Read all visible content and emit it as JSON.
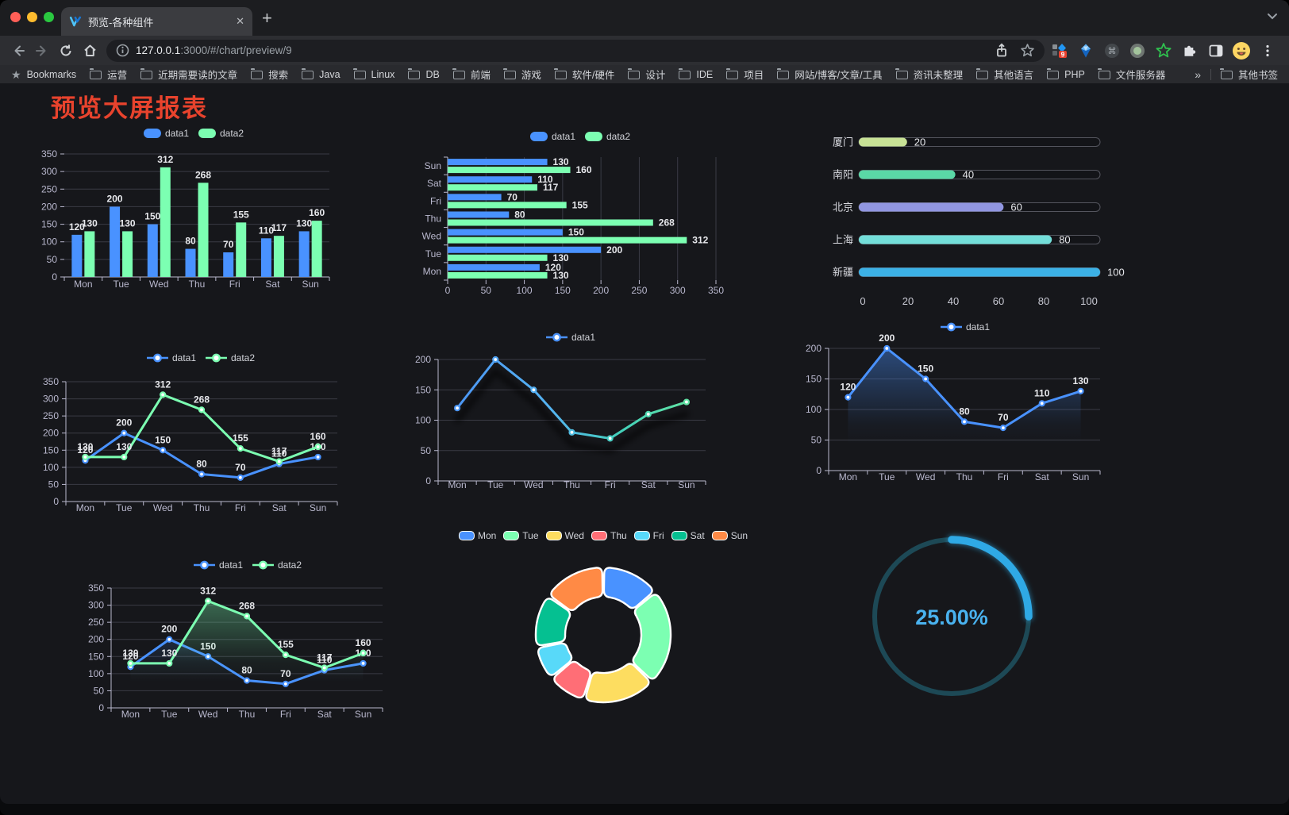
{
  "browser": {
    "window_controls": {
      "close": "#ff5f57",
      "minimize": "#febc2e",
      "zoom": "#2ac840"
    },
    "tab": {
      "title": "预览-各种组件",
      "close_glyph": "✕"
    },
    "new_tab_button": "+",
    "address": {
      "host": "127.0.0.1",
      "path": ":3000/#/chart/preview/9"
    },
    "extension_badge": "9",
    "bookmarks_label": "Bookmarks",
    "bookmarks": [
      "运营",
      "近期需要读的文章",
      "搜索",
      "Java",
      "Linux",
      "DB",
      "前端",
      "游戏",
      "软件/硬件",
      "设计",
      "IDE",
      "项目",
      "网站/博客/文章/工具",
      "资讯未整理",
      "其他语言",
      "PHP",
      "文件服务器"
    ],
    "bookmarks_overflow": "»",
    "other_bookmarks": "其他书签"
  },
  "page": {
    "title": "预览大屏报表",
    "title_color": "#e8432d",
    "background": "#16171b"
  },
  "chart_data": [
    {
      "id": "grouped-bar",
      "type": "bar",
      "categories": [
        "Mon",
        "Tue",
        "Wed",
        "Thu",
        "Fri",
        "Sat",
        "Sun"
      ],
      "series": [
        {
          "name": "data1",
          "color": "#4992ff",
          "values": [
            120,
            200,
            150,
            80,
            70,
            110,
            130
          ]
        },
        {
          "name": "data2",
          "color": "#7cffb2",
          "values": [
            130,
            130,
            312,
            268,
            155,
            117,
            160
          ]
        }
      ],
      "ylim": [
        0,
        350
      ],
      "ytick": 50,
      "legend_position": "top",
      "value_labels": true
    },
    {
      "id": "horizontal-bar",
      "type": "bar-horizontal",
      "categories": [
        "Mon",
        "Tue",
        "Wed",
        "Thu",
        "Fri",
        "Sat",
        "Sun"
      ],
      "series": [
        {
          "name": "data1",
          "color": "#4992ff",
          "values": [
            120,
            200,
            150,
            80,
            70,
            110,
            130
          ]
        },
        {
          "name": "data2",
          "color": "#7cffb2",
          "values": [
            130,
            130,
            312,
            268,
            155,
            117,
            160
          ]
        }
      ],
      "xlim": [
        0,
        350
      ],
      "xtick": 50,
      "legend_position": "top",
      "value_labels": true,
      "category_order": "Mon at bottom, Sun at top"
    },
    {
      "id": "progress-bars",
      "type": "bar",
      "items": [
        {
          "label": "厦门",
          "value": 20,
          "color": "#c8e296"
        },
        {
          "label": "南阳",
          "value": 40,
          "color": "#5ad8a6"
        },
        {
          "label": "北京",
          "value": 60,
          "color": "#9196e1"
        },
        {
          "label": "上海",
          "value": 80,
          "color": "#73ded9"
        },
        {
          "label": "新疆",
          "value": 100,
          "color": "#3cb1e6"
        }
      ],
      "xlim": [
        0,
        100
      ],
      "xticks": [
        0,
        20,
        40,
        60,
        80,
        100
      ]
    },
    {
      "id": "line-two-series",
      "type": "line",
      "categories": [
        "Mon",
        "Tue",
        "Wed",
        "Thu",
        "Fri",
        "Sat",
        "Sun"
      ],
      "series": [
        {
          "name": "data1",
          "color": "#4992ff",
          "values": [
            120,
            200,
            150,
            80,
            70,
            110,
            130
          ]
        },
        {
          "name": "data2",
          "color": "#7cffb2",
          "values": [
            130,
            130,
            312,
            268,
            155,
            117,
            160
          ]
        }
      ],
      "ylim": [
        0,
        350
      ],
      "ytick": 50,
      "legend_position": "top",
      "value_labels": true
    },
    {
      "id": "line-gradient",
      "type": "line",
      "categories": [
        "Mon",
        "Tue",
        "Wed",
        "Thu",
        "Fri",
        "Sat",
        "Sun"
      ],
      "series": [
        {
          "name": "data1",
          "gradient": [
            "#4a90f5",
            "#55b4f2",
            "#43d0ba",
            "#69e89d"
          ],
          "values": [
            120,
            200,
            150,
            80,
            70,
            110,
            130
          ]
        }
      ],
      "ylim": [
        0,
        200
      ],
      "ytick": 50,
      "legend_position": "top",
      "value_labels": false,
      "shadow": true
    },
    {
      "id": "area-single",
      "type": "area",
      "categories": [
        "Mon",
        "Tue",
        "Wed",
        "Thu",
        "Fri",
        "Sat",
        "Sun"
      ],
      "series": [
        {
          "name": "data1",
          "color": "#4992ff",
          "values": [
            120,
            200,
            150,
            80,
            70,
            110,
            130
          ],
          "area": true
        }
      ],
      "ylim": [
        0,
        200
      ],
      "ytick": 50,
      "legend_position": "top",
      "value_labels": true
    },
    {
      "id": "area-two-series",
      "type": "area",
      "categories": [
        "Mon",
        "Tue",
        "Wed",
        "Thu",
        "Fri",
        "Sat",
        "Sun"
      ],
      "series": [
        {
          "name": "data1",
          "color": "#4992ff",
          "values": [
            120,
            200,
            150,
            80,
            70,
            110,
            130
          ],
          "area": true
        },
        {
          "name": "data2",
          "color": "#7cffb2",
          "values": [
            130,
            130,
            312,
            268,
            155,
            117,
            160
          ],
          "area": true
        }
      ],
      "ylim": [
        0,
        350
      ],
      "ytick": 50,
      "legend_position": "top",
      "value_labels": true
    },
    {
      "id": "donut",
      "type": "pie",
      "categories": [
        "Mon",
        "Tue",
        "Wed",
        "Thu",
        "Fri",
        "Sat",
        "Sun"
      ],
      "values": [
        120,
        200,
        150,
        80,
        70,
        110,
        130
      ],
      "colors": [
        "#4992ff",
        "#7cffb2",
        "#fddd60",
        "#ff6e76",
        "#58d9f9",
        "#05c091",
        "#ff8a45"
      ],
      "inner_radius_ratio": 0.56,
      "legend_position": "top"
    },
    {
      "id": "gauge",
      "type": "gauge",
      "value": 25,
      "max": 100,
      "label": "25.00%",
      "color": "#2fa9e5",
      "track_color": "#1d4956",
      "text_color": "#49b2ef"
    }
  ]
}
